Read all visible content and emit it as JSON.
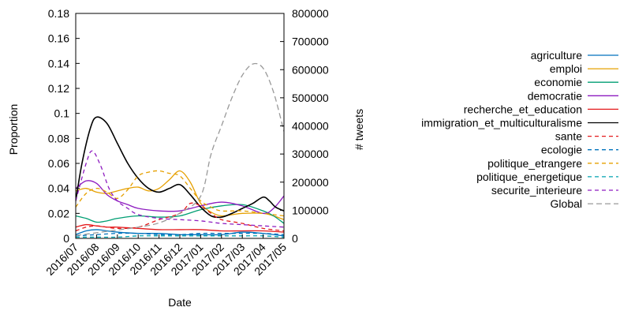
{
  "chart_data": {
    "type": "line",
    "xlabel": "Date",
    "ylabel_left": "Proportion",
    "ylabel_right": "# tweets",
    "x_ticks": [
      "2016/07",
      "2016/08",
      "2016/09",
      "2016/10",
      "2016/11",
      "2016/12",
      "2017/01",
      "2017/02",
      "2017/03",
      "2017/04",
      "2017/05"
    ],
    "left_axis": {
      "ylim": [
        0,
        0.18
      ],
      "ticks": [
        "0",
        "0.02",
        "0.04",
        "0.06",
        "0.08",
        "0.1",
        "0.12",
        "0.14",
        "0.16",
        "0.18"
      ]
    },
    "right_axis": {
      "ylim": [
        0,
        800000
      ],
      "ticks": [
        "0",
        "100000",
        "200000",
        "300000",
        "400000",
        "500000",
        "600000",
        "700000",
        "800000"
      ]
    },
    "grid": false,
    "legend_position": "right",
    "series": [
      {
        "name": "agriculture",
        "color": "#0072bd",
        "style": "solid",
        "axis": "left",
        "points": [
          [
            0,
            0.003
          ],
          [
            0.5,
            0.006
          ],
          [
            1,
            0.007
          ],
          [
            1.5,
            0.006
          ],
          [
            2,
            0.005
          ],
          [
            3,
            0.004
          ],
          [
            4,
            0.004
          ],
          [
            5,
            0.003
          ],
          [
            6,
            0.003
          ],
          [
            7,
            0.003
          ],
          [
            8,
            0.005
          ],
          [
            9,
            0.004
          ],
          [
            9.5,
            0.003
          ],
          [
            10,
            0.002
          ]
        ]
      },
      {
        "name": "emploi",
        "color": "#e6a000",
        "style": "solid",
        "axis": "left",
        "points": [
          [
            0,
            0.038
          ],
          [
            0.5,
            0.04
          ],
          [
            1,
            0.037
          ],
          [
            1.5,
            0.036
          ],
          [
            2,
            0.038
          ],
          [
            2.5,
            0.04
          ],
          [
            3,
            0.041
          ],
          [
            3.5,
            0.038
          ],
          [
            4,
            0.04
          ],
          [
            4.5,
            0.047
          ],
          [
            5,
            0.054
          ],
          [
            5.5,
            0.045
          ],
          [
            6,
            0.028
          ],
          [
            6.5,
            0.021
          ],
          [
            7,
            0.018
          ],
          [
            7.5,
            0.019
          ],
          [
            8,
            0.02
          ],
          [
            9,
            0.02
          ],
          [
            9.5,
            0.018
          ],
          [
            10,
            0.015
          ]
        ]
      },
      {
        "name": "economie",
        "color": "#009e73",
        "style": "solid",
        "axis": "left",
        "points": [
          [
            0,
            0.018
          ],
          [
            0.5,
            0.016
          ],
          [
            1,
            0.013
          ],
          [
            1.5,
            0.014
          ],
          [
            2,
            0.016
          ],
          [
            3,
            0.018
          ],
          [
            4,
            0.017
          ],
          [
            5,
            0.018
          ],
          [
            6,
            0.023
          ],
          [
            7,
            0.026
          ],
          [
            8,
            0.027
          ],
          [
            9,
            0.022
          ],
          [
            9.5,
            0.018
          ],
          [
            10,
            0.012
          ]
        ]
      },
      {
        "name": "democratie",
        "color": "#8e1cc0",
        "style": "solid",
        "axis": "left",
        "points": [
          [
            0,
            0.04
          ],
          [
            0.5,
            0.046
          ],
          [
            1,
            0.044
          ],
          [
            1.5,
            0.035
          ],
          [
            2,
            0.03
          ],
          [
            2.5,
            0.027
          ],
          [
            3,
            0.024
          ],
          [
            4,
            0.022
          ],
          [
            5,
            0.022
          ],
          [
            6,
            0.026
          ],
          [
            7,
            0.029
          ],
          [
            8,
            0.026
          ],
          [
            9,
            0.02
          ],
          [
            9.5,
            0.024
          ],
          [
            10,
            0.034
          ]
        ]
      },
      {
        "name": "recherche_et_education",
        "color": "#e41a1c",
        "style": "solid",
        "axis": "left",
        "points": [
          [
            0,
            0.009
          ],
          [
            0.5,
            0.011
          ],
          [
            1,
            0.01
          ],
          [
            1.5,
            0.009
          ],
          [
            2,
            0.009
          ],
          [
            3,
            0.008
          ],
          [
            4,
            0.007
          ],
          [
            5,
            0.007
          ],
          [
            6,
            0.007
          ],
          [
            7,
            0.006
          ],
          [
            8,
            0.006
          ],
          [
            9,
            0.006
          ],
          [
            10,
            0.005
          ]
        ]
      },
      {
        "name": "immigration_et_multiculturalisme",
        "color": "#000000",
        "style": "solid",
        "axis": "left",
        "points": [
          [
            0,
            0.03
          ],
          [
            0.3,
            0.06
          ],
          [
            0.7,
            0.088
          ],
          [
            1,
            0.097
          ],
          [
            1.5,
            0.092
          ],
          [
            2,
            0.076
          ],
          [
            2.5,
            0.06
          ],
          [
            3,
            0.048
          ],
          [
            3.5,
            0.04
          ],
          [
            4,
            0.037
          ],
          [
            4.5,
            0.04
          ],
          [
            5,
            0.043
          ],
          [
            5.5,
            0.035
          ],
          [
            6,
            0.025
          ],
          [
            6.5,
            0.018
          ],
          [
            7,
            0.017
          ],
          [
            7.5,
            0.02
          ],
          [
            8,
            0.024
          ],
          [
            8.5,
            0.028
          ],
          [
            9,
            0.033
          ],
          [
            9.3,
            0.03
          ],
          [
            9.6,
            0.025
          ],
          [
            10,
            0.022
          ]
        ]
      },
      {
        "name": "sante",
        "color": "#e41a1c",
        "style": "dashed",
        "axis": "left",
        "points": [
          [
            0,
            0.006
          ],
          [
            0.5,
            0.009
          ],
          [
            1,
            0.01
          ],
          [
            1.5,
            0.009
          ],
          [
            2,
            0.008
          ],
          [
            3,
            0.009
          ],
          [
            4,
            0.015
          ],
          [
            5,
            0.02
          ],
          [
            5.5,
            0.028
          ],
          [
            6,
            0.026
          ],
          [
            6.5,
            0.02
          ],
          [
            7,
            0.015
          ],
          [
            8,
            0.012
          ],
          [
            9,
            0.008
          ],
          [
            10,
            0.006
          ]
        ]
      },
      {
        "name": "ecologie",
        "color": "#0072bd",
        "style": "dashed",
        "axis": "left",
        "points": [
          [
            0,
            0.002
          ],
          [
            1,
            0.003
          ],
          [
            2,
            0.004
          ],
          [
            3,
            0.004
          ],
          [
            4,
            0.003
          ],
          [
            5,
            0.003
          ],
          [
            6,
            0.004
          ],
          [
            7,
            0.004
          ],
          [
            8,
            0.004
          ],
          [
            9,
            0.004
          ],
          [
            10,
            0.003
          ]
        ]
      },
      {
        "name": "politique_etrangere",
        "color": "#e6a000",
        "style": "dashed",
        "axis": "left",
        "points": [
          [
            0,
            0.025
          ],
          [
            0.5,
            0.036
          ],
          [
            1,
            0.04
          ],
          [
            1.5,
            0.037
          ],
          [
            2,
            0.032
          ],
          [
            2.5,
            0.039
          ],
          [
            3,
            0.05
          ],
          [
            3.5,
            0.053
          ],
          [
            4,
            0.054
          ],
          [
            4.5,
            0.052
          ],
          [
            5,
            0.05
          ],
          [
            5.5,
            0.04
          ],
          [
            6,
            0.03
          ],
          [
            6.5,
            0.025
          ],
          [
            7,
            0.022
          ],
          [
            8,
            0.022
          ],
          [
            9,
            0.02
          ],
          [
            10,
            0.018
          ]
        ]
      },
      {
        "name": "politique_energetique",
        "color": "#00a2b0",
        "style": "dashed",
        "axis": "left",
        "points": [
          [
            0,
            0.001
          ],
          [
            1,
            0.001
          ],
          [
            2,
            0.001
          ],
          [
            3,
            0.002
          ],
          [
            4,
            0.002
          ],
          [
            5,
            0.002
          ],
          [
            6,
            0.002
          ],
          [
            7,
            0.002
          ],
          [
            8,
            0.002
          ],
          [
            9,
            0.002
          ],
          [
            10,
            0.001
          ]
        ]
      },
      {
        "name": "securite_interieure",
        "color": "#8e1cc0",
        "style": "dashed",
        "axis": "left",
        "points": [
          [
            0,
            0.03
          ],
          [
            0.5,
            0.06
          ],
          [
            0.8,
            0.07
          ],
          [
            1.2,
            0.058
          ],
          [
            1.6,
            0.04
          ],
          [
            2,
            0.03
          ],
          [
            2.5,
            0.024
          ],
          [
            3,
            0.019
          ],
          [
            4,
            0.016
          ],
          [
            5,
            0.015
          ],
          [
            6,
            0.014
          ],
          [
            7,
            0.012
          ],
          [
            8,
            0.011
          ],
          [
            9,
            0.01
          ],
          [
            10,
            0.009
          ]
        ]
      },
      {
        "name": "Global",
        "color": "#999999",
        "style": "dashed",
        "axis": "right",
        "points": [
          [
            0,
            10000
          ],
          [
            1,
            20000
          ],
          [
            2,
            30000
          ],
          [
            3,
            40000
          ],
          [
            4,
            55000
          ],
          [
            5,
            90000
          ],
          [
            6,
            150000
          ],
          [
            6.5,
            300000
          ],
          [
            7,
            400000
          ],
          [
            7.5,
            500000
          ],
          [
            8,
            580000
          ],
          [
            8.5,
            620000
          ],
          [
            9,
            605000
          ],
          [
            9.5,
            520000
          ],
          [
            10,
            380000
          ]
        ]
      }
    ]
  }
}
